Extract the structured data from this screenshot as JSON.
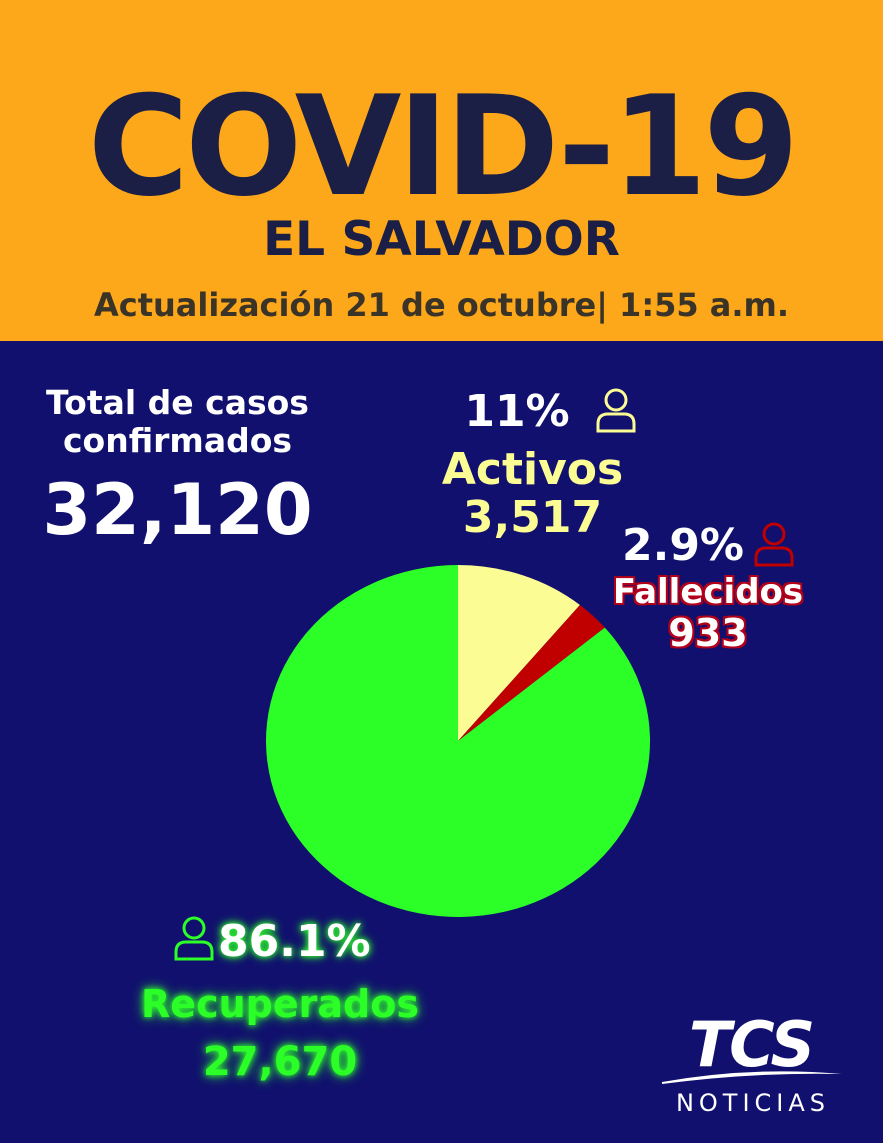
{
  "header": {
    "title": "COVID-19",
    "country": "EL SALVADOR",
    "update": "Actualización 21 de octubre| 1:55 a.m."
  },
  "total": {
    "label": "Total de casos confirmados",
    "value": "32,120"
  },
  "labels": {
    "activos": {
      "pct": "11%",
      "name": "Activos",
      "value": "3,517"
    },
    "fallecidos": {
      "pct": "2.9%",
      "name": "Fallecidos",
      "value": "933"
    },
    "recuperados": {
      "pct": "86.1%",
      "name": "Recuperados",
      "value": "27,670"
    }
  },
  "colors": {
    "header_bg": "#fda71a",
    "body_bg": "#11106e",
    "title": "#1b1f45",
    "activos": "#fcfc94",
    "fallecidos": "#c00000",
    "recuperados": "#2cff28"
  },
  "icons": {
    "activos": "person-icon",
    "fallecidos": "person-icon",
    "recuperados": "person-icon"
  },
  "chart_data": {
    "type": "pie",
    "title": "",
    "total": 32120,
    "slices": [
      {
        "name": "Activos",
        "value": 3517,
        "percent": 11,
        "color": "#fcfc94"
      },
      {
        "name": "Fallecidos",
        "value": 933,
        "percent": 2.9,
        "color": "#c00000"
      },
      {
        "name": "Recuperados",
        "value": 27670,
        "percent": 86.1,
        "color": "#2cff28"
      }
    ]
  },
  "logo": {
    "main": "TCS",
    "sub": "NOTICIAS"
  }
}
